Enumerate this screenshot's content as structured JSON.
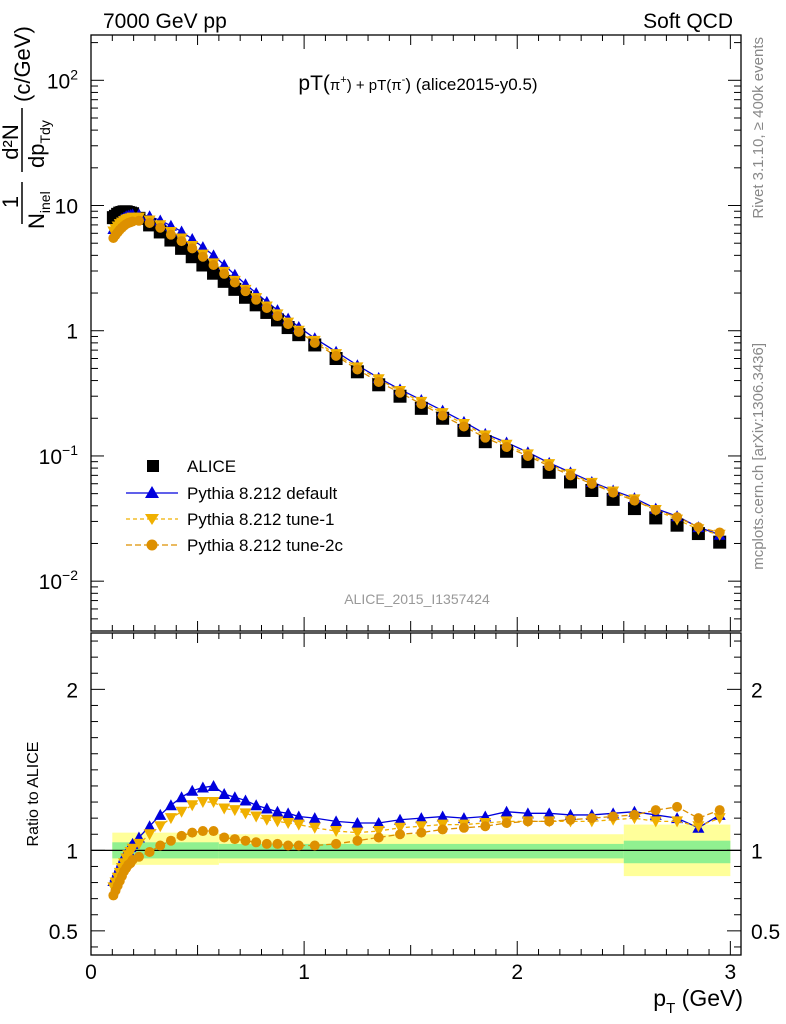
{
  "header": {
    "left": "7000 GeV pp",
    "right": "Soft QCD"
  },
  "side_text": {
    "rivet": "Rivet 3.1.10, ≥ 400k events",
    "mcplots": "mcplots.cern.ch [arXiv:1306.3436]"
  },
  "watermark": "ALICE_2015_I1357424",
  "colors": {
    "data": "#000000",
    "default": "#0000dd",
    "tune1": "#f0b000",
    "tune2c": "#dd9000",
    "band_green": "#90f090",
    "band_yellow": "#ffff9a"
  },
  "chart_data": [
    {
      "panel": "main",
      "type": "scatter",
      "title": "pT(π⁺) + pT(π⁻) (alice2015-y0.5)",
      "title_parts": {
        "a": "pT(",
        "b": "π",
        "c": "+",
        "d": ") + pT(",
        "e": "π",
        "f": "-",
        "g": ") (alice2015-y0.5)"
      },
      "ylabel": "1/N_inel d²N/dp_T dy (c/GeV)",
      "ylabel_parts": {
        "one": "1",
        "n": "N",
        "inel": "inel",
        "num": "d²N",
        "den": "dp",
        "tdy": "Tdy",
        "unit": "(c/GeV)"
      },
      "yscale": "log",
      "ylim": [
        0.004,
        230
      ],
      "xlim": [
        0,
        3.05
      ],
      "yticks": [
        {
          "value": 100,
          "base": "10",
          "exp": "2"
        },
        {
          "value": 10,
          "base": "10",
          "exp": ""
        },
        {
          "value": 1,
          "base": "1",
          "exp": ""
        },
        {
          "value": 0.1,
          "base": "10",
          "exp": "−1"
        },
        {
          "value": 0.01,
          "base": "10",
          "exp": "−2"
        }
      ],
      "x": [
        0.105,
        0.115,
        0.125,
        0.135,
        0.145,
        0.155,
        0.165,
        0.175,
        0.185,
        0.195,
        0.225,
        0.275,
        0.325,
        0.375,
        0.425,
        0.475,
        0.525,
        0.575,
        0.625,
        0.675,
        0.725,
        0.775,
        0.825,
        0.875,
        0.925,
        0.975,
        1.05,
        1.15,
        1.25,
        1.35,
        1.45,
        1.55,
        1.65,
        1.75,
        1.85,
        1.95,
        2.05,
        2.15,
        2.25,
        2.35,
        2.45,
        2.55,
        2.65,
        2.75,
        2.85,
        2.95
      ],
      "legend": [
        "ALICE",
        "Pythia 8.212 default",
        "Pythia 8.212 tune-1",
        "Pythia 8.212 tune-2c"
      ],
      "series": [
        {
          "name": "ALICE",
          "marker": "square",
          "values": [
            8.0,
            8.2,
            8.5,
            8.7,
            8.8,
            8.9,
            8.9,
            8.8,
            8.7,
            8.6,
            7.9,
            7.0,
            6.15,
            5.3,
            4.55,
            3.9,
            3.35,
            2.88,
            2.48,
            2.14,
            1.85,
            1.61,
            1.4,
            1.22,
            1.06,
            0.93,
            0.77,
            0.6,
            0.47,
            0.37,
            0.3,
            0.24,
            0.2,
            0.16,
            0.13,
            0.109,
            0.09,
            0.074,
            0.062,
            0.053,
            0.045,
            0.038,
            0.032,
            0.028,
            0.024,
            0.0205
          ]
        },
        {
          "name": "Pythia 8.212 default",
          "marker": "triangle",
          "values": [
            6.5,
            6.8,
            7.2,
            7.5,
            7.8,
            8.0,
            8.2,
            8.3,
            8.4,
            8.5,
            8.5,
            8.2,
            7.6,
            6.9,
            6.2,
            5.4,
            4.65,
            4.0,
            3.35,
            2.8,
            2.35,
            2.0,
            1.7,
            1.46,
            1.25,
            1.07,
            0.87,
            0.68,
            0.53,
            0.42,
            0.34,
            0.28,
            0.23,
            0.187,
            0.15,
            0.128,
            0.107,
            0.088,
            0.074,
            0.062,
            0.053,
            0.046,
            0.038,
            0.033,
            0.027,
            0.0235
          ]
        },
        {
          "name": "Pythia 8.212 tune-1",
          "marker": "triangle-down",
          "values": [
            6.2,
            6.5,
            6.8,
            7.1,
            7.3,
            7.5,
            7.7,
            7.8,
            7.9,
            8.0,
            8.0,
            7.6,
            6.95,
            6.15,
            5.45,
            4.75,
            4.05,
            3.45,
            2.95,
            2.5,
            2.12,
            1.82,
            1.56,
            1.35,
            1.16,
            1.0,
            0.83,
            0.65,
            0.51,
            0.41,
            0.33,
            0.27,
            0.22,
            0.18,
            0.146,
            0.123,
            0.103,
            0.086,
            0.072,
            0.061,
            0.052,
            0.045,
            0.037,
            0.031,
            0.026,
            0.0235
          ]
        },
        {
          "name": "Pythia 8.212 tune-2c",
          "marker": "circle",
          "values": [
            5.5,
            5.8,
            6.1,
            6.4,
            6.65,
            6.9,
            7.1,
            7.25,
            7.35,
            7.45,
            7.55,
            7.25,
            6.65,
            5.85,
            5.2,
            4.55,
            3.9,
            3.35,
            2.85,
            2.43,
            2.07,
            1.77,
            1.52,
            1.31,
            1.13,
            0.98,
            0.8,
            0.63,
            0.49,
            0.39,
            0.32,
            0.26,
            0.21,
            0.172,
            0.14,
            0.118,
            0.1,
            0.083,
            0.07,
            0.06,
            0.051,
            0.044,
            0.037,
            0.0325,
            0.027,
            0.0245
          ]
        }
      ]
    },
    {
      "panel": "ratio",
      "type": "line",
      "ylabel": "Ratio to ALICE",
      "xlabel": "p_T (GeV)",
      "xlabel_parts": {
        "p": "p",
        "t": "T",
        "unit": "(GeV)"
      },
      "ylim": [
        0.35,
        2.35
      ],
      "xlim": [
        0,
        3.05
      ],
      "yticks": [
        {
          "value": 2,
          "label": "2"
        },
        {
          "value": 1,
          "label": "1"
        },
        {
          "value": 0.5,
          "label": "0.5"
        }
      ],
      "xticks": [
        {
          "value": 0,
          "label": "0"
        },
        {
          "value": 1,
          "label": "1"
        },
        {
          "value": 2,
          "label": "2"
        },
        {
          "value": 3,
          "label": "3"
        }
      ],
      "reference": 1,
      "band_inner": [
        {
          "x0": 0.1,
          "x1": 0.6,
          "lo": 0.95,
          "hi": 1.05
        },
        {
          "x0": 0.6,
          "x1": 2.5,
          "lo": 0.95,
          "hi": 1.04
        },
        {
          "x0": 2.5,
          "x1": 3.0,
          "lo": 0.92,
          "hi": 1.06
        }
      ],
      "band_outer": [
        {
          "x0": 0.1,
          "x1": 0.6,
          "lo": 0.91,
          "hi": 1.11
        },
        {
          "x0": 0.6,
          "x1": 2.5,
          "lo": 0.92,
          "hi": 1.1
        },
        {
          "x0": 2.5,
          "x1": 3.0,
          "lo": 0.84,
          "hi": 1.16
        }
      ],
      "x": [
        0.105,
        0.115,
        0.125,
        0.135,
        0.145,
        0.155,
        0.165,
        0.175,
        0.185,
        0.195,
        0.225,
        0.275,
        0.325,
        0.375,
        0.425,
        0.475,
        0.525,
        0.575,
        0.625,
        0.675,
        0.725,
        0.775,
        0.825,
        0.875,
        0.925,
        0.975,
        1.05,
        1.15,
        1.25,
        1.35,
        1.45,
        1.55,
        1.65,
        1.75,
        1.85,
        1.95,
        2.05,
        2.15,
        2.25,
        2.35,
        2.45,
        2.55,
        2.65,
        2.75,
        2.85,
        2.95
      ],
      "series": [
        {
          "name": "Pythia 8.212 default",
          "marker": "triangle",
          "values": [
            0.81,
            0.84,
            0.87,
            0.9,
            0.93,
            0.96,
            0.98,
            1.0,
            1.02,
            1.04,
            1.08,
            1.15,
            1.22,
            1.28,
            1.33,
            1.37,
            1.39,
            1.4,
            1.35,
            1.33,
            1.31,
            1.28,
            1.26,
            1.24,
            1.23,
            1.21,
            1.2,
            1.18,
            1.17,
            1.17,
            1.19,
            1.2,
            1.21,
            1.2,
            1.21,
            1.24,
            1.23,
            1.23,
            1.22,
            1.22,
            1.23,
            1.24,
            1.22,
            1.2,
            1.14,
            1.22
          ]
        },
        {
          "name": "Pythia 8.212 tune-1",
          "marker": "triangle-down",
          "values": [
            0.77,
            0.8,
            0.83,
            0.86,
            0.89,
            0.92,
            0.95,
            0.97,
            0.99,
            1.01,
            1.04,
            1.1,
            1.15,
            1.2,
            1.24,
            1.28,
            1.3,
            1.3,
            1.26,
            1.25,
            1.23,
            1.21,
            1.19,
            1.18,
            1.17,
            1.16,
            1.14,
            1.12,
            1.11,
            1.12,
            1.14,
            1.15,
            1.16,
            1.16,
            1.17,
            1.18,
            1.18,
            1.18,
            1.18,
            1.18,
            1.19,
            1.2,
            1.18,
            1.18,
            1.15,
            1.2
          ]
        },
        {
          "name": "Pythia 8.212 tune-2c",
          "marker": "circle",
          "values": [
            0.72,
            0.75,
            0.78,
            0.81,
            0.84,
            0.87,
            0.89,
            0.91,
            0.92,
            0.94,
            0.96,
            0.99,
            1.03,
            1.06,
            1.09,
            1.11,
            1.12,
            1.12,
            1.08,
            1.07,
            1.06,
            1.05,
            1.04,
            1.04,
            1.03,
            1.03,
            1.03,
            1.04,
            1.06,
            1.08,
            1.1,
            1.11,
            1.13,
            1.14,
            1.15,
            1.17,
            1.18,
            1.18,
            1.19,
            1.2,
            1.21,
            1.22,
            1.25,
            1.27,
            1.2,
            1.25
          ]
        }
      ]
    }
  ]
}
